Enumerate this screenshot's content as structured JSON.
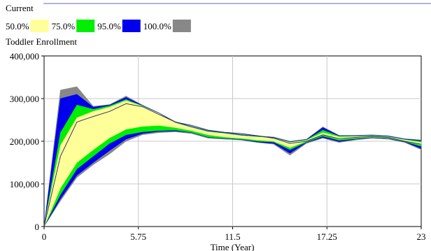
{
  "chart_data": {
    "type": "area",
    "run_label": "Current",
    "legend": [
      {
        "label": "50.0%",
        "color": "#ffff99"
      },
      {
        "label": "75.0%",
        "color": "#00ee00"
      },
      {
        "label": "95.0%",
        "color": "#0000ee"
      },
      {
        "label": "100.0%",
        "color": "#888888"
      }
    ],
    "variable": "Toddler Enrollment",
    "xlabel": "Time (Year)",
    "xlim": [
      0,
      23
    ],
    "ylim": [
      0,
      400000
    ],
    "x_tick_labels": [
      "0",
      "5.75",
      "11.5",
      "17.25",
      "23"
    ],
    "y_tick_labels": [
      "0",
      "100,000",
      "200,000",
      "300,000",
      "400,000"
    ],
    "x": [
      0,
      1,
      2,
      3,
      4,
      5,
      6,
      7,
      8,
      9,
      10,
      11,
      12,
      13,
      14,
      15,
      16,
      17,
      18,
      19,
      20,
      21,
      22,
      23
    ],
    "bands": {
      "p100_low": [
        0,
        60000,
        115000,
        145000,
        170000,
        200000,
        215000,
        220000,
        222000,
        218000,
        207000,
        205000,
        203000,
        197000,
        193000,
        167000,
        195000,
        207000,
        197000,
        203000,
        207000,
        205000,
        197000,
        180000
      ],
      "p95_low": [
        0,
        65000,
        120000,
        150000,
        178000,
        205000,
        218000,
        223000,
        224000,
        220000,
        209000,
        206000,
        204000,
        198000,
        195000,
        172000,
        197000,
        209000,
        199000,
        205000,
        208000,
        206000,
        198000,
        183000
      ],
      "p75_low": [
        0,
        75000,
        135000,
        165000,
        195000,
        215000,
        222000,
        225000,
        226000,
        221000,
        210000,
        207000,
        205000,
        200000,
        198000,
        180000,
        198000,
        212000,
        202000,
        206000,
        209000,
        207000,
        199000,
        188000
      ],
      "p50_low": [
        0,
        90000,
        150000,
        180000,
        208000,
        228000,
        235000,
        237000,
        232000,
        225000,
        215000,
        210000,
        207000,
        203000,
        200000,
        185000,
        200000,
        215000,
        205000,
        208000,
        210000,
        208000,
        200000,
        192000
      ],
      "p50_high": [
        0,
        190000,
        255000,
        270000,
        280000,
        295000,
        282000,
        265000,
        243000,
        232000,
        222000,
        218000,
        213000,
        210000,
        207000,
        197000,
        202000,
        220000,
        210000,
        211000,
        212000,
        210000,
        203000,
        197000
      ],
      "p75_high": [
        0,
        220000,
        285000,
        275000,
        283000,
        298000,
        283000,
        265000,
        244000,
        233000,
        223000,
        219000,
        214000,
        211000,
        208000,
        198000,
        203000,
        226000,
        212000,
        212000,
        213000,
        211000,
        204000,
        200000
      ],
      "p95_high": [
        0,
        300000,
        310000,
        280000,
        285000,
        303000,
        284000,
        266000,
        245000,
        234000,
        224000,
        220000,
        215000,
        212000,
        209000,
        199000,
        204000,
        232000,
        213000,
        213000,
        214000,
        212000,
        205000,
        202000
      ],
      "p100_high": [
        0,
        320000,
        328000,
        282000,
        286000,
        306000,
        285000,
        267000,
        246000,
        235000,
        225000,
        221000,
        216000,
        213000,
        210000,
        200000,
        205000,
        234000,
        214000,
        214000,
        215000,
        213000,
        206000,
        203000
      ]
    },
    "mean_line": [
      0,
      165000,
      245000,
      258000,
      270000,
      288000,
      281000,
      263000,
      245000,
      237000,
      226000,
      221000,
      218000,
      213000,
      207000,
      195000,
      200000,
      215000,
      206000,
      209000,
      211000,
      209000,
      200000,
      193000
    ]
  }
}
